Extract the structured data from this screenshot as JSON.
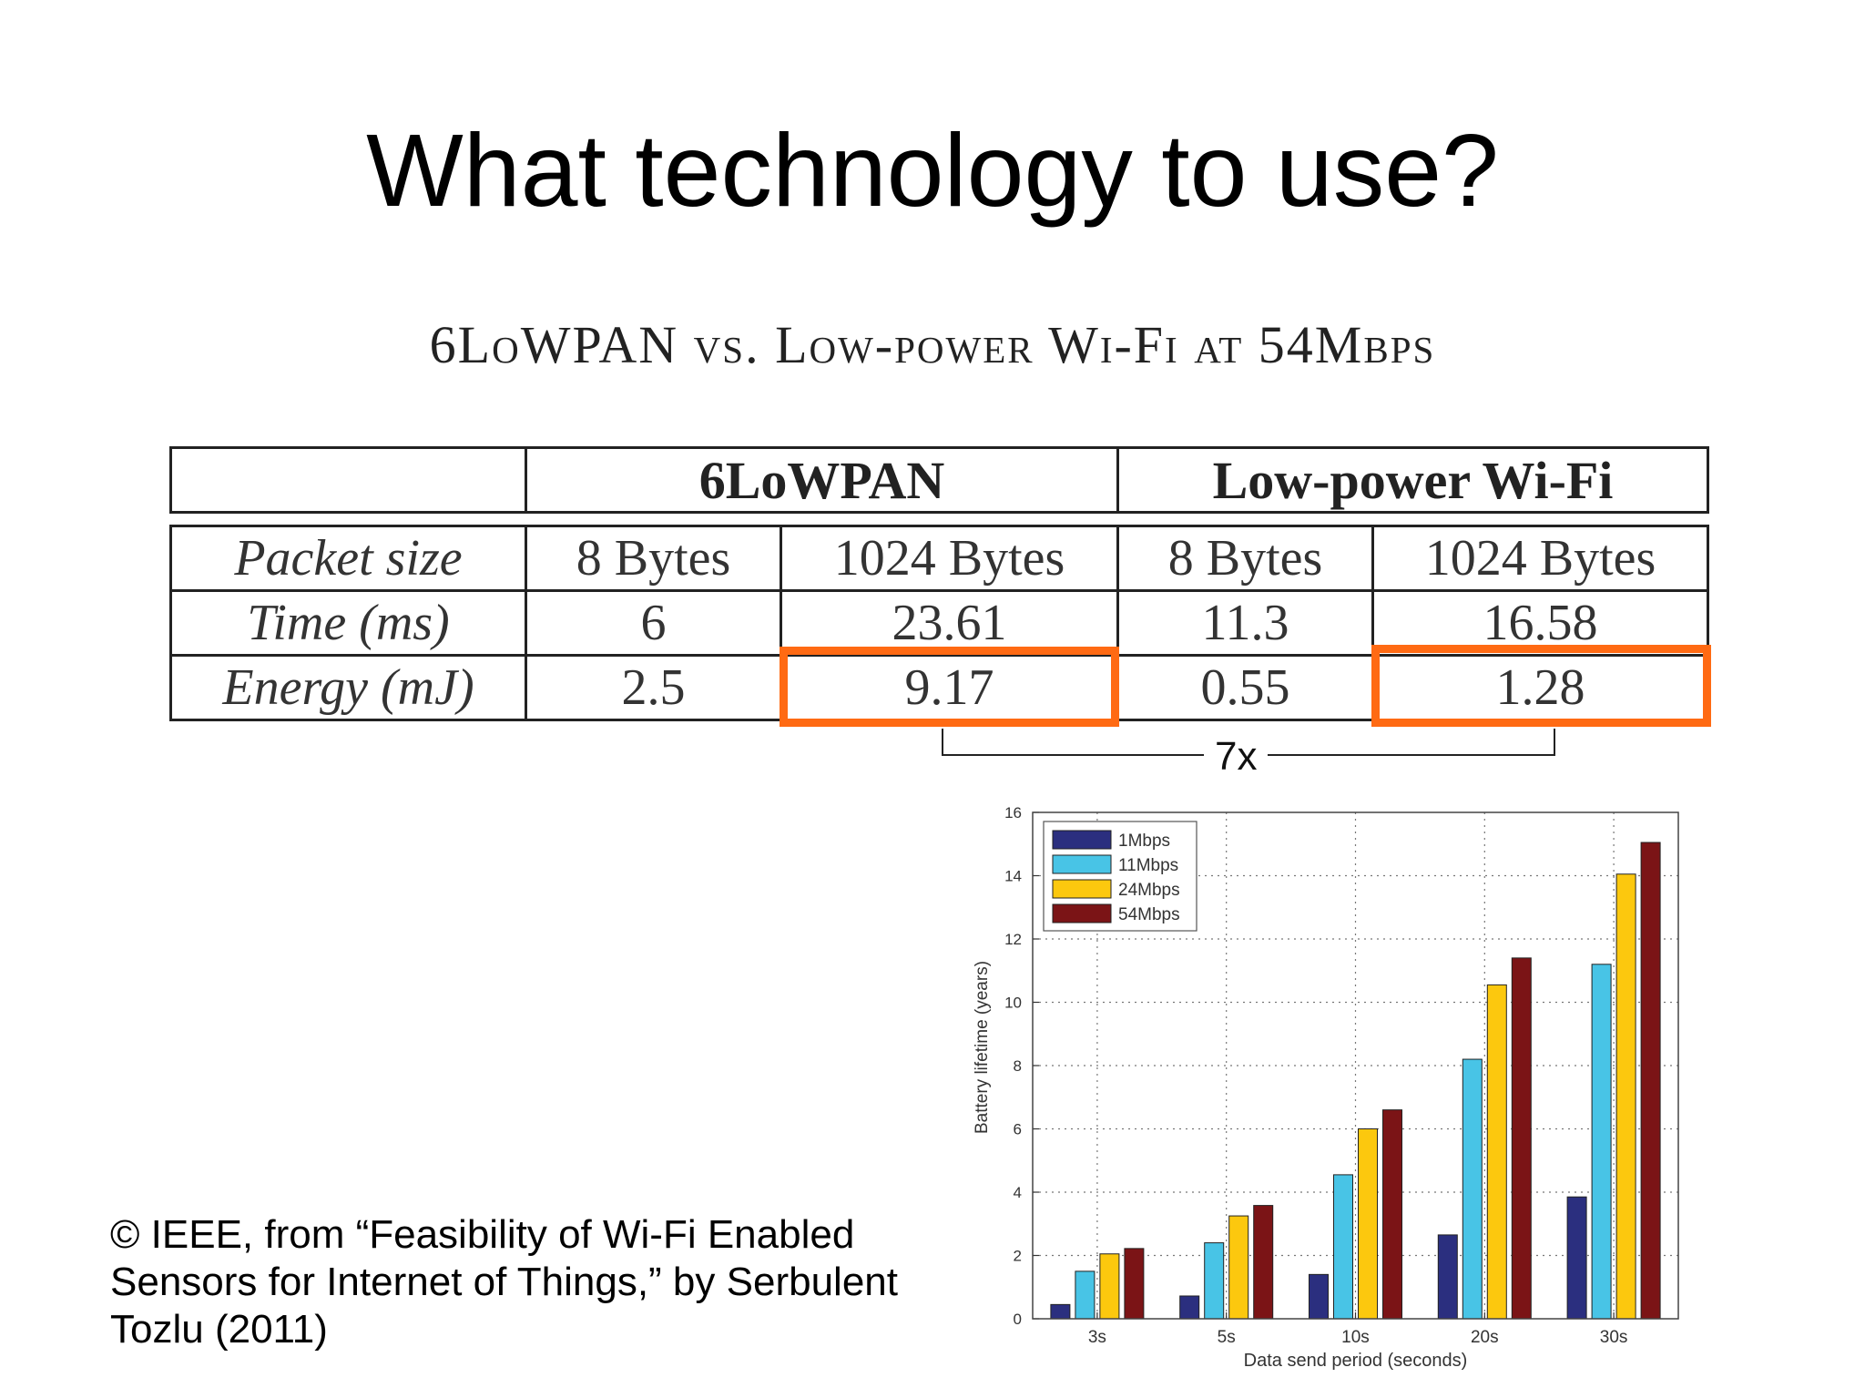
{
  "slide": {
    "title": "What technology to use?",
    "table_title": "6LoWPAN vs. Low-power Wi-Fi at 54Mbps",
    "credit_lines": [
      "© IEEE, from “Feasibility of Wi-Fi Enabled",
      "Sensors for Internet of Things,” by Serbulent",
      "Tozlu (2011)"
    ],
    "ratio_label": "7x",
    "highlight_color": "#ff6a13"
  },
  "table": {
    "groups": [
      "6LoWPAN",
      "Low-power Wi-Fi"
    ],
    "rows": [
      {
        "label": "Packet size",
        "cells": [
          "8 Bytes",
          "1024 Bytes",
          "8 Bytes",
          "1024 Bytes"
        ]
      },
      {
        "label": "Time (ms)",
        "cells": [
          "6",
          "23.61",
          "11.3",
          "16.58"
        ]
      },
      {
        "label": "Energy (mJ)",
        "cells": [
          "2.5",
          "9.17",
          "0.55",
          "1.28"
        ]
      }
    ]
  },
  "chart_data": {
    "type": "bar",
    "categories": [
      "3s",
      "5s",
      "10s",
      "20s",
      "30s"
    ],
    "series": [
      {
        "name": "1Mbps",
        "color": "#2b2f7f",
        "values": [
          0.45,
          0.72,
          1.4,
          2.65,
          3.85
        ]
      },
      {
        "name": "11Mbps",
        "color": "#48c4e6",
        "values": [
          1.5,
          2.4,
          4.55,
          8.2,
          11.2
        ]
      },
      {
        "name": "24Mbps",
        "color": "#fcc80e",
        "values": [
          2.05,
          3.25,
          6.0,
          10.55,
          14.05
        ]
      },
      {
        "name": "54Mbps",
        "color": "#7b1416",
        "values": [
          2.22,
          3.58,
          6.6,
          11.4,
          15.05
        ]
      }
    ],
    "xlabel": "Data send period (seconds)",
    "ylabel": "Battery lifetime (years)",
    "ylim": [
      0,
      16
    ],
    "yticks": [
      "0",
      "2",
      "4",
      "6",
      "8",
      "10",
      "12",
      "14",
      "16"
    ],
    "grid": true,
    "legend": "top-left"
  }
}
